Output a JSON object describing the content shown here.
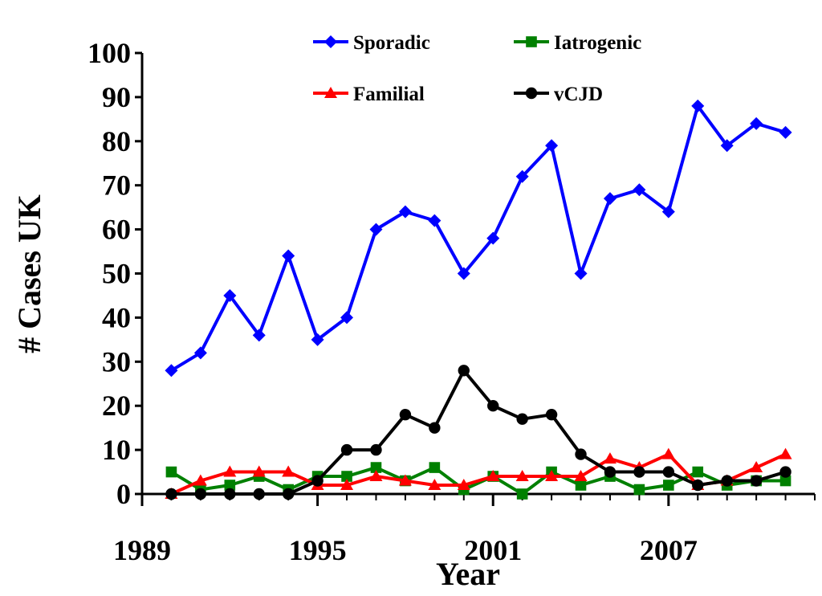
{
  "chart_data": {
    "type": "line",
    "title": "",
    "xlabel": "Year",
    "ylabel": "# Cases UK",
    "x": [
      1990,
      1991,
      1992,
      1993,
      1994,
      1995,
      1996,
      1997,
      1998,
      1999,
      2000,
      2001,
      2002,
      2003,
      2004,
      2005,
      2006,
      2007,
      2008,
      2009,
      2010,
      2011
    ],
    "xlim": [
      1989,
      2012
    ],
    "ylim": [
      0,
      100
    ],
    "x_ticks": [
      1989,
      1995,
      2001,
      2007
    ],
    "x_tick_labels": [
      "1989",
      "1995",
      "2001",
      "2007"
    ],
    "y_ticks": [
      0,
      10,
      20,
      30,
      40,
      50,
      60,
      70,
      80,
      90,
      100
    ],
    "y_tick_labels": [
      "0",
      "10",
      "20",
      "30",
      "40",
      "50",
      "60",
      "70",
      "80",
      "90",
      "100"
    ],
    "grid": false,
    "legend_position": "top",
    "series": [
      {
        "name": "Sporadic",
        "color": "#0000ff",
        "marker": "diamond",
        "values": [
          28,
          32,
          45,
          36,
          54,
          35,
          40,
          60,
          64,
          62,
          50,
          58,
          72,
          79,
          50,
          67,
          69,
          64,
          88,
          79,
          84,
          82
        ]
      },
      {
        "name": "Iatrogenic",
        "color": "#008000",
        "marker": "square",
        "values": [
          5,
          1,
          2,
          4,
          1,
          4,
          4,
          6,
          3,
          6,
          1,
          4,
          0,
          5,
          2,
          4,
          1,
          2,
          5,
          2,
          3,
          3
        ]
      },
      {
        "name": "Familial",
        "color": "#ff0000",
        "marker": "triangle",
        "values": [
          0,
          3,
          5,
          5,
          5,
          2,
          2,
          4,
          3,
          2,
          2,
          4,
          4,
          4,
          4,
          8,
          6,
          9,
          2,
          3,
          6,
          9
        ]
      },
      {
        "name": "vCJD",
        "color": "#000000",
        "marker": "circle",
        "values": [
          0,
          0,
          0,
          0,
          0,
          3,
          10,
          10,
          18,
          15,
          28,
          20,
          17,
          18,
          9,
          5,
          5,
          5,
          2,
          3,
          3,
          5
        ]
      }
    ]
  }
}
